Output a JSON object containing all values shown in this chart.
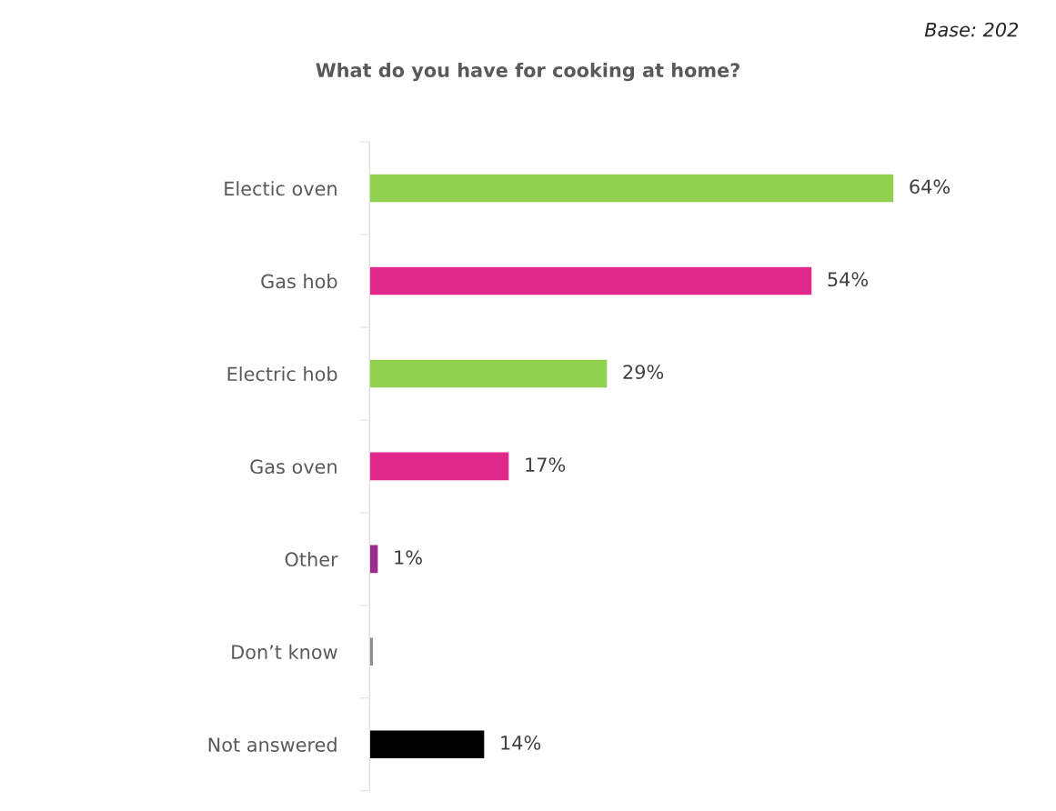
{
  "chart_data": {
    "type": "bar",
    "orientation": "horizontal",
    "title": "What do you have for cooking at home?",
    "annotations": [
      "Base: 202"
    ],
    "categories": [
      "Electic oven",
      "Gas hob",
      "Electric hob",
      "Gas oven",
      "Other",
      "Don’t know",
      "Not answered"
    ],
    "values": [
      64,
      54,
      29,
      17,
      1,
      0.4,
      14
    ],
    "colors": [
      "#92d050",
      "#e0298a",
      "#92d050",
      "#e0298a",
      "#9b2d8e",
      "#8c8c8c",
      "#000000"
    ],
    "value_labels": [
      "64%",
      "54%",
      "29%",
      "17%",
      "1%",
      null,
      "14%"
    ],
    "tick_labels": "y",
    "grid": false,
    "legend": false
  }
}
